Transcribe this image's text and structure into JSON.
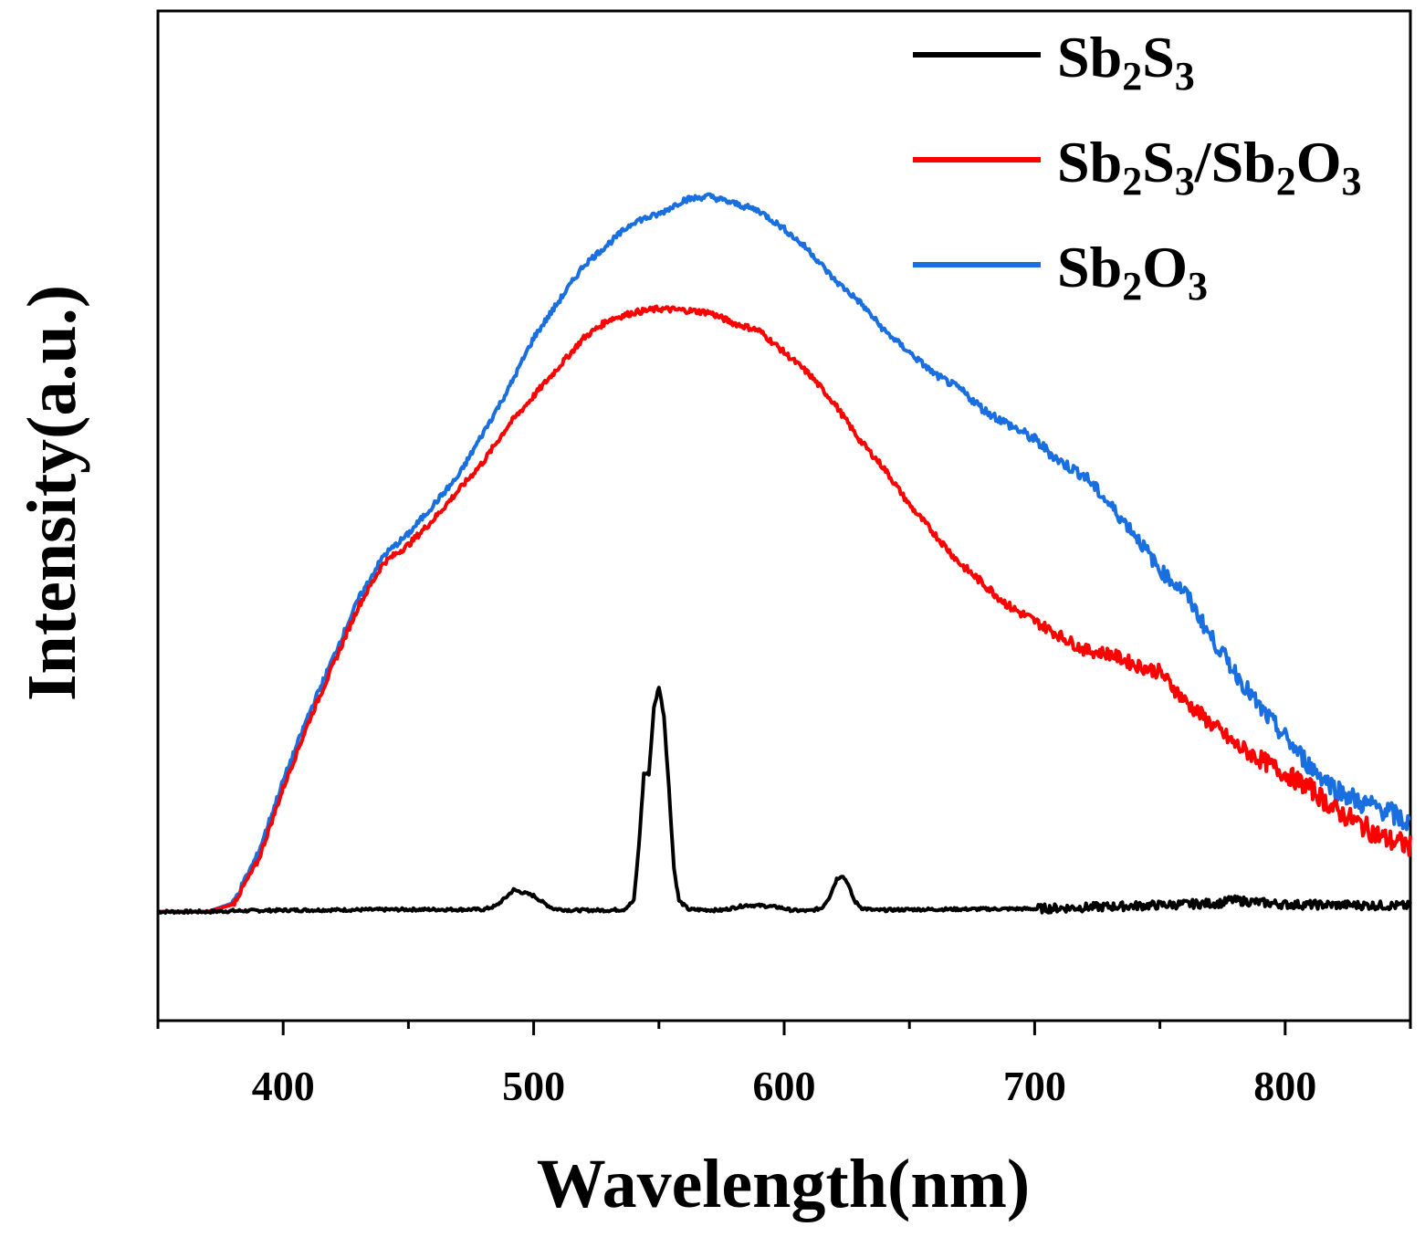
{
  "chart_data": {
    "type": "line",
    "title": "",
    "xlabel": "Wavelength(nm)",
    "ylabel": "Intensity(a.u.)",
    "xlim": [
      350,
      850
    ],
    "ylim": [
      -0.15,
      1.24
    ],
    "xticks": [
      400,
      500,
      600,
      700,
      800
    ],
    "y_ticks_shown": false,
    "grid": false,
    "legend_position": "top-right",
    "series": [
      {
        "name": "Sb2S3",
        "name_parts": [
          "Sb",
          "2",
          "S",
          "3"
        ],
        "color": "#000000",
        "points": [
          [
            350,
            0
          ],
          [
            370,
            0
          ],
          [
            380,
            0.001
          ],
          [
            400,
            0.002
          ],
          [
            450,
            0.003
          ],
          [
            480,
            0.003
          ],
          [
            485,
            0.008
          ],
          [
            489,
            0.02
          ],
          [
            492,
            0.03
          ],
          [
            496,
            0.026
          ],
          [
            500,
            0.022
          ],
          [
            504,
            0.012
          ],
          [
            508,
            0.004
          ],
          [
            515,
            0.002
          ],
          [
            530,
            0.002
          ],
          [
            536,
            0.003
          ],
          [
            540,
            0.015
          ],
          [
            542,
            0.09
          ],
          [
            544,
            0.19
          ],
          [
            546,
            0.19
          ],
          [
            548,
            0.28
          ],
          [
            550,
            0.31
          ],
          [
            552,
            0.27
          ],
          [
            554,
            0.17
          ],
          [
            556,
            0.06
          ],
          [
            558,
            0.015
          ],
          [
            562,
            0.003
          ],
          [
            575,
            0.002
          ],
          [
            585,
            0.009
          ],
          [
            592,
            0.008
          ],
          [
            598,
            0.006
          ],
          [
            603,
            0.002
          ],
          [
            610,
            0.001
          ],
          [
            615,
            0.005
          ],
          [
            618,
            0.02
          ],
          [
            621,
            0.045
          ],
          [
            623,
            0.05
          ],
          [
            625,
            0.042
          ],
          [
            628,
            0.015
          ],
          [
            631,
            0.005
          ],
          [
            636,
            0.002
          ],
          [
            650,
            0.003
          ],
          [
            700,
            0.004
          ],
          [
            740,
            0.008
          ],
          [
            775,
            0.012
          ],
          [
            778,
            0.016
          ],
          [
            800,
            0.01
          ],
          [
            830,
            0.009
          ],
          [
            850,
            0.008
          ]
        ]
      },
      {
        "name": "Sb2S3/Sb2O3",
        "name_parts": [
          "Sb",
          "2",
          "S",
          "3",
          "/Sb",
          "2",
          "O",
          "3"
        ],
        "color": "#ff0000",
        "points": [
          [
            350,
            0
          ],
          [
            370,
            0
          ],
          [
            380,
            0.01
          ],
          [
            390,
            0.07
          ],
          [
            400,
            0.17
          ],
          [
            410,
            0.26
          ],
          [
            420,
            0.34
          ],
          [
            430,
            0.42
          ],
          [
            440,
            0.48
          ],
          [
            450,
            0.505
          ],
          [
            460,
            0.54
          ],
          [
            470,
            0.58
          ],
          [
            480,
            0.62
          ],
          [
            490,
            0.67
          ],
          [
            500,
            0.71
          ],
          [
            510,
            0.75
          ],
          [
            520,
            0.79
          ],
          [
            530,
            0.815
          ],
          [
            540,
            0.825
          ],
          [
            550,
            0.83
          ],
          [
            560,
            0.828
          ],
          [
            570,
            0.825
          ],
          [
            580,
            0.81
          ],
          [
            590,
            0.8
          ],
          [
            600,
            0.77
          ],
          [
            610,
            0.74
          ],
          [
            620,
            0.7
          ],
          [
            630,
            0.65
          ],
          [
            640,
            0.61
          ],
          [
            650,
            0.56
          ],
          [
            660,
            0.52
          ],
          [
            670,
            0.48
          ],
          [
            680,
            0.45
          ],
          [
            690,
            0.42
          ],
          [
            700,
            0.4
          ],
          [
            710,
            0.38
          ],
          [
            720,
            0.36
          ],
          [
            730,
            0.355
          ],
          [
            740,
            0.34
          ],
          [
            750,
            0.33
          ],
          [
            760,
            0.29
          ],
          [
            770,
            0.26
          ],
          [
            780,
            0.23
          ],
          [
            790,
            0.21
          ],
          [
            800,
            0.19
          ],
          [
            810,
            0.17
          ],
          [
            820,
            0.14
          ],
          [
            830,
            0.12
          ],
          [
            840,
            0.1
          ],
          [
            850,
            0.09
          ]
        ]
      },
      {
        "name": "Sb2O3",
        "name_parts": [
          "Sb",
          "2",
          "O",
          "3"
        ],
        "color": "#1a6fe0",
        "points": [
          [
            350,
            0
          ],
          [
            370,
            0
          ],
          [
            380,
            0.012
          ],
          [
            390,
            0.08
          ],
          [
            400,
            0.18
          ],
          [
            410,
            0.27
          ],
          [
            420,
            0.35
          ],
          [
            430,
            0.43
          ],
          [
            440,
            0.49
          ],
          [
            450,
            0.52
          ],
          [
            460,
            0.56
          ],
          [
            470,
            0.6
          ],
          [
            480,
            0.66
          ],
          [
            490,
            0.72
          ],
          [
            500,
            0.79
          ],
          [
            510,
            0.84
          ],
          [
            520,
            0.89
          ],
          [
            530,
            0.92
          ],
          [
            540,
            0.95
          ],
          [
            550,
            0.96
          ],
          [
            560,
            0.98
          ],
          [
            570,
            0.985
          ],
          [
            580,
            0.975
          ],
          [
            590,
            0.965
          ],
          [
            600,
            0.94
          ],
          [
            610,
            0.91
          ],
          [
            620,
            0.87
          ],
          [
            630,
            0.84
          ],
          [
            640,
            0.8
          ],
          [
            650,
            0.77
          ],
          [
            660,
            0.74
          ],
          [
            670,
            0.72
          ],
          [
            680,
            0.69
          ],
          [
            690,
            0.67
          ],
          [
            700,
            0.65
          ],
          [
            710,
            0.62
          ],
          [
            720,
            0.6
          ],
          [
            730,
            0.56
          ],
          [
            740,
            0.52
          ],
          [
            750,
            0.47
          ],
          [
            760,
            0.44
          ],
          [
            770,
            0.38
          ],
          [
            780,
            0.33
          ],
          [
            790,
            0.28
          ],
          [
            800,
            0.24
          ],
          [
            810,
            0.2
          ],
          [
            820,
            0.17
          ],
          [
            830,
            0.15
          ],
          [
            840,
            0.14
          ],
          [
            850,
            0.12
          ]
        ]
      }
    ]
  }
}
